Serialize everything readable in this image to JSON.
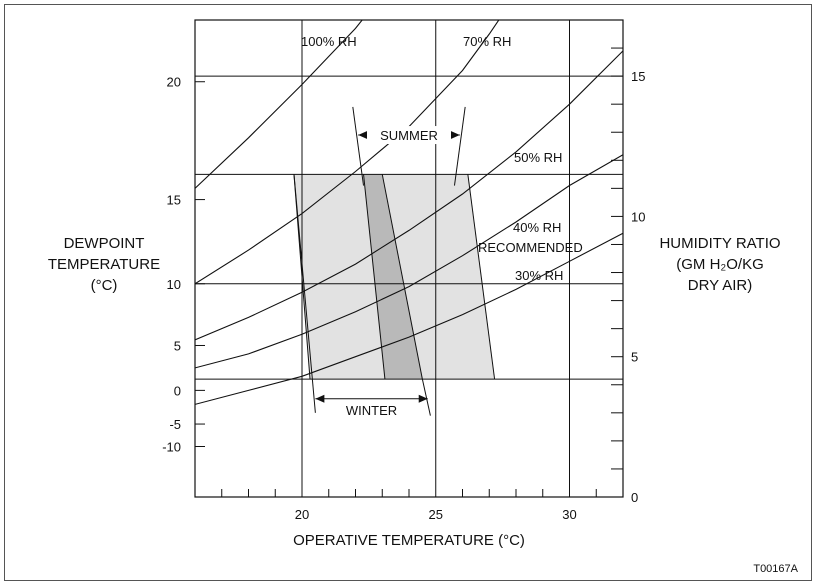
{
  "figure_id": "T00167A",
  "chart_data": {
    "type": "line",
    "xlabel": "OPERATIVE TEMPERATURE (°C)",
    "ylabel_left": [
      "DEWPOINT",
      "TEMPERATURE",
      "(°C)"
    ],
    "ylabel_right": [
      "HUMIDITY RATIO",
      "(GM H₂O/KG",
      "DRY AIR)"
    ],
    "xlim": [
      16,
      32
    ],
    "ylim_left_humidity_ratio": [
      0,
      17
    ],
    "x_ticks": [
      20,
      25,
      30
    ],
    "x_tick_labels": [
      "20",
      "25",
      "30"
    ],
    "left_ticks": [
      {
        "label": "20",
        "ratio": 14.8
      },
      {
        "label": "15",
        "ratio": 10.6
      },
      {
        "label": "10",
        "ratio": 7.6
      },
      {
        "label": "5",
        "ratio": 5.4
      },
      {
        "label": "0",
        "ratio": 3.8
      },
      {
        "label": "-5",
        "ratio": 2.6
      },
      {
        "label": "-10",
        "ratio": 1.8
      }
    ],
    "right_ticks": [
      {
        "label": "0",
        "ratio": 0
      },
      {
        "label": "5",
        "ratio": 5
      },
      {
        "label": "10",
        "ratio": 10
      },
      {
        "label": "15",
        "ratio": 15
      }
    ],
    "right_minor_ticks": [
      1,
      2,
      3,
      4,
      6,
      7,
      8,
      9,
      11,
      12,
      13,
      14,
      16
    ],
    "x_minor_ticks": [
      17,
      18,
      19,
      21,
      22,
      23,
      24,
      26,
      27,
      28,
      29,
      31
    ],
    "horizontal_lines_ratio": [
      15,
      11.5,
      7.6,
      4.2
    ],
    "rh_curves": [
      {
        "label": "100% RH",
        "points": [
          [
            16,
            11.0
          ],
          [
            18,
            12.8
          ],
          [
            20,
            14.7
          ],
          [
            22,
            16.7
          ],
          [
            23,
            17.9
          ]
        ]
      },
      {
        "label": "70% RH",
        "points": [
          [
            16,
            7.6
          ],
          [
            18,
            8.8
          ],
          [
            20,
            10.1
          ],
          [
            22,
            11.6
          ],
          [
            24,
            13.2
          ],
          [
            26,
            15.2
          ],
          [
            27,
            16.5
          ],
          [
            28,
            17.9
          ]
        ]
      },
      {
        "label": "50% RH",
        "points": [
          [
            16,
            5.6
          ],
          [
            18,
            6.4
          ],
          [
            20,
            7.3
          ],
          [
            22,
            8.3
          ],
          [
            24,
            9.5
          ],
          [
            26,
            10.8
          ],
          [
            28,
            12.3
          ],
          [
            30,
            14.0
          ],
          [
            32,
            15.9
          ]
        ]
      },
      {
        "label": "40% RH",
        "points": [
          [
            16,
            4.6
          ],
          [
            18,
            5.1
          ],
          [
            20,
            5.8
          ],
          [
            22,
            6.6
          ],
          [
            24,
            7.5
          ],
          [
            26,
            8.6
          ],
          [
            28,
            9.8
          ],
          [
            30,
            11.1
          ],
          [
            32,
            12.2
          ]
        ]
      },
      {
        "label": "30% RH",
        "points": [
          [
            16,
            3.3
          ],
          [
            18,
            3.8
          ],
          [
            20,
            4.3
          ],
          [
            22,
            5.0
          ],
          [
            24,
            5.7
          ],
          [
            26,
            6.5
          ],
          [
            28,
            7.4
          ],
          [
            30,
            8.4
          ],
          [
            32,
            9.4
          ]
        ]
      }
    ],
    "label_recommended": "RECOMMENDED",
    "comfort_zone_light": [
      [
        19.7,
        11.5
      ],
      [
        26.2,
        11.5
      ],
      [
        27.2,
        4.2
      ],
      [
        20.3,
        4.2
      ]
    ],
    "comfort_zone_overlap": [
      [
        22.3,
        11.5
      ],
      [
        23.0,
        11.5
      ],
      [
        24.5,
        4.2
      ],
      [
        23.1,
        4.2
      ]
    ],
    "summer_bracket": {
      "label": "SUMMER",
      "x_start": 22.1,
      "x_end": 25.9,
      "y": 12.9
    },
    "summer_bracket_lines": [
      [
        [
          21.9,
          13.9
        ],
        [
          22.3,
          11.1
        ]
      ],
      [
        [
          26.1,
          13.9
        ],
        [
          25.7,
          11.1
        ]
      ]
    ],
    "winter_bracket": {
      "label": "WINTER",
      "x_start": 20.5,
      "x_end": 24.7,
      "y": 3.5
    },
    "winter_bracket_lines": [
      [
        [
          19.7,
          11.5
        ],
        [
          20.5,
          3.0
        ]
      ],
      [
        [
          24.5,
          4.2
        ],
        [
          24.8,
          2.9
        ]
      ]
    ]
  }
}
